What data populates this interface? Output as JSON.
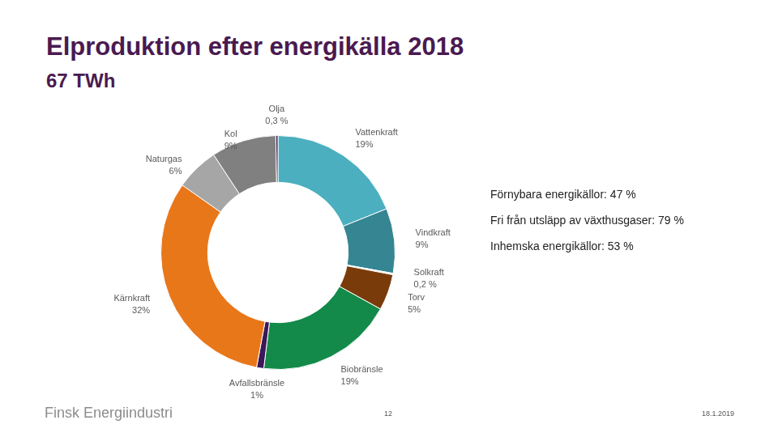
{
  "chart_data": {
    "type": "doughnut",
    "title": "Elproduktion efter energikälla 2018",
    "subtitle": "67 TWh",
    "categories": [
      "Vattenkraft",
      "Vindkraft",
      "Solkraft",
      "Torv",
      "Biobränsle",
      "Avfallsbränsle",
      "Kärnkraft",
      "Naturgas",
      "Kol",
      "Olja"
    ],
    "values": [
      19,
      9,
      0.2,
      5,
      19,
      1,
      32,
      6,
      9,
      0.3
    ],
    "value_labels": [
      "19%",
      "9%",
      "0,2 %",
      "5%",
      "19%",
      "1%",
      "32%",
      "6%",
      "9%",
      "0,3 %"
    ],
    "colors": [
      "#4bafbf",
      "#358592",
      "#f4f4f4",
      "#7a3b0a",
      "#138a4a",
      "#3b1858",
      "#e8771a",
      "#a6a6a6",
      "#808080",
      "#3d1f4f"
    ],
    "data_labels": true,
    "annotations": [
      "Förnybara energikällor: 47 %",
      "Fri från utsläpp av växthusgaser: 79 %",
      "Inhemska energikällor: 53 %"
    ]
  },
  "footer": {
    "source": "Finsk Energiindustri",
    "page": "12",
    "date": "18.1.2019"
  }
}
